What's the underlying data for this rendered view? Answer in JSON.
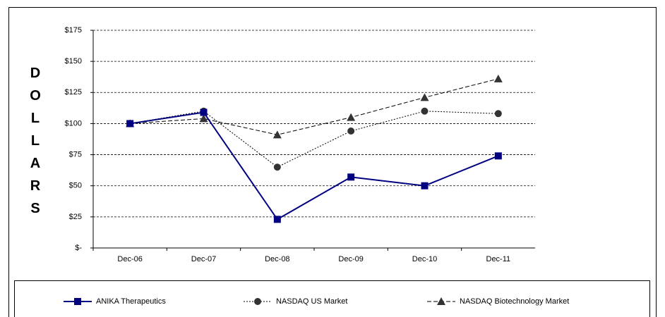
{
  "chart_data": {
    "type": "line",
    "y_label": "DOLLARS",
    "categories": [
      "Dec-06",
      "Dec-07",
      "Dec-08",
      "Dec-09",
      "Dec-10",
      "Dec-11"
    ],
    "series": [
      {
        "name": "ANIKA Therapeutics",
        "color": "#000080",
        "line_style": "solid",
        "marker": "square",
        "values": [
          100,
          109,
          23,
          57,
          50,
          74
        ]
      },
      {
        "name": "NASDAQ US Market",
        "color": "#000000",
        "line_style": "dotted",
        "marker": "circle",
        "values": [
          100,
          110,
          65,
          94,
          110,
          108
        ]
      },
      {
        "name": "NASDAQ Biotechnology Market",
        "color": "#000000",
        "line_style": "dashed",
        "marker": "triangle",
        "values": [
          100,
          104,
          91,
          105,
          121,
          136
        ]
      }
    ],
    "ylim": [
      0,
      175
    ],
    "yticks": [
      {
        "value": 0,
        "label": "$-"
      },
      {
        "value": 25,
        "label": "$25"
      },
      {
        "value": 50,
        "label": "$50"
      },
      {
        "value": 75,
        "label": "$75"
      },
      {
        "value": 100,
        "label": "$100"
      },
      {
        "value": 125,
        "label": "$125"
      },
      {
        "value": 150,
        "label": "$150"
      },
      {
        "value": 175,
        "label": "$175"
      }
    ],
    "grid": true,
    "legend": "bottom"
  }
}
